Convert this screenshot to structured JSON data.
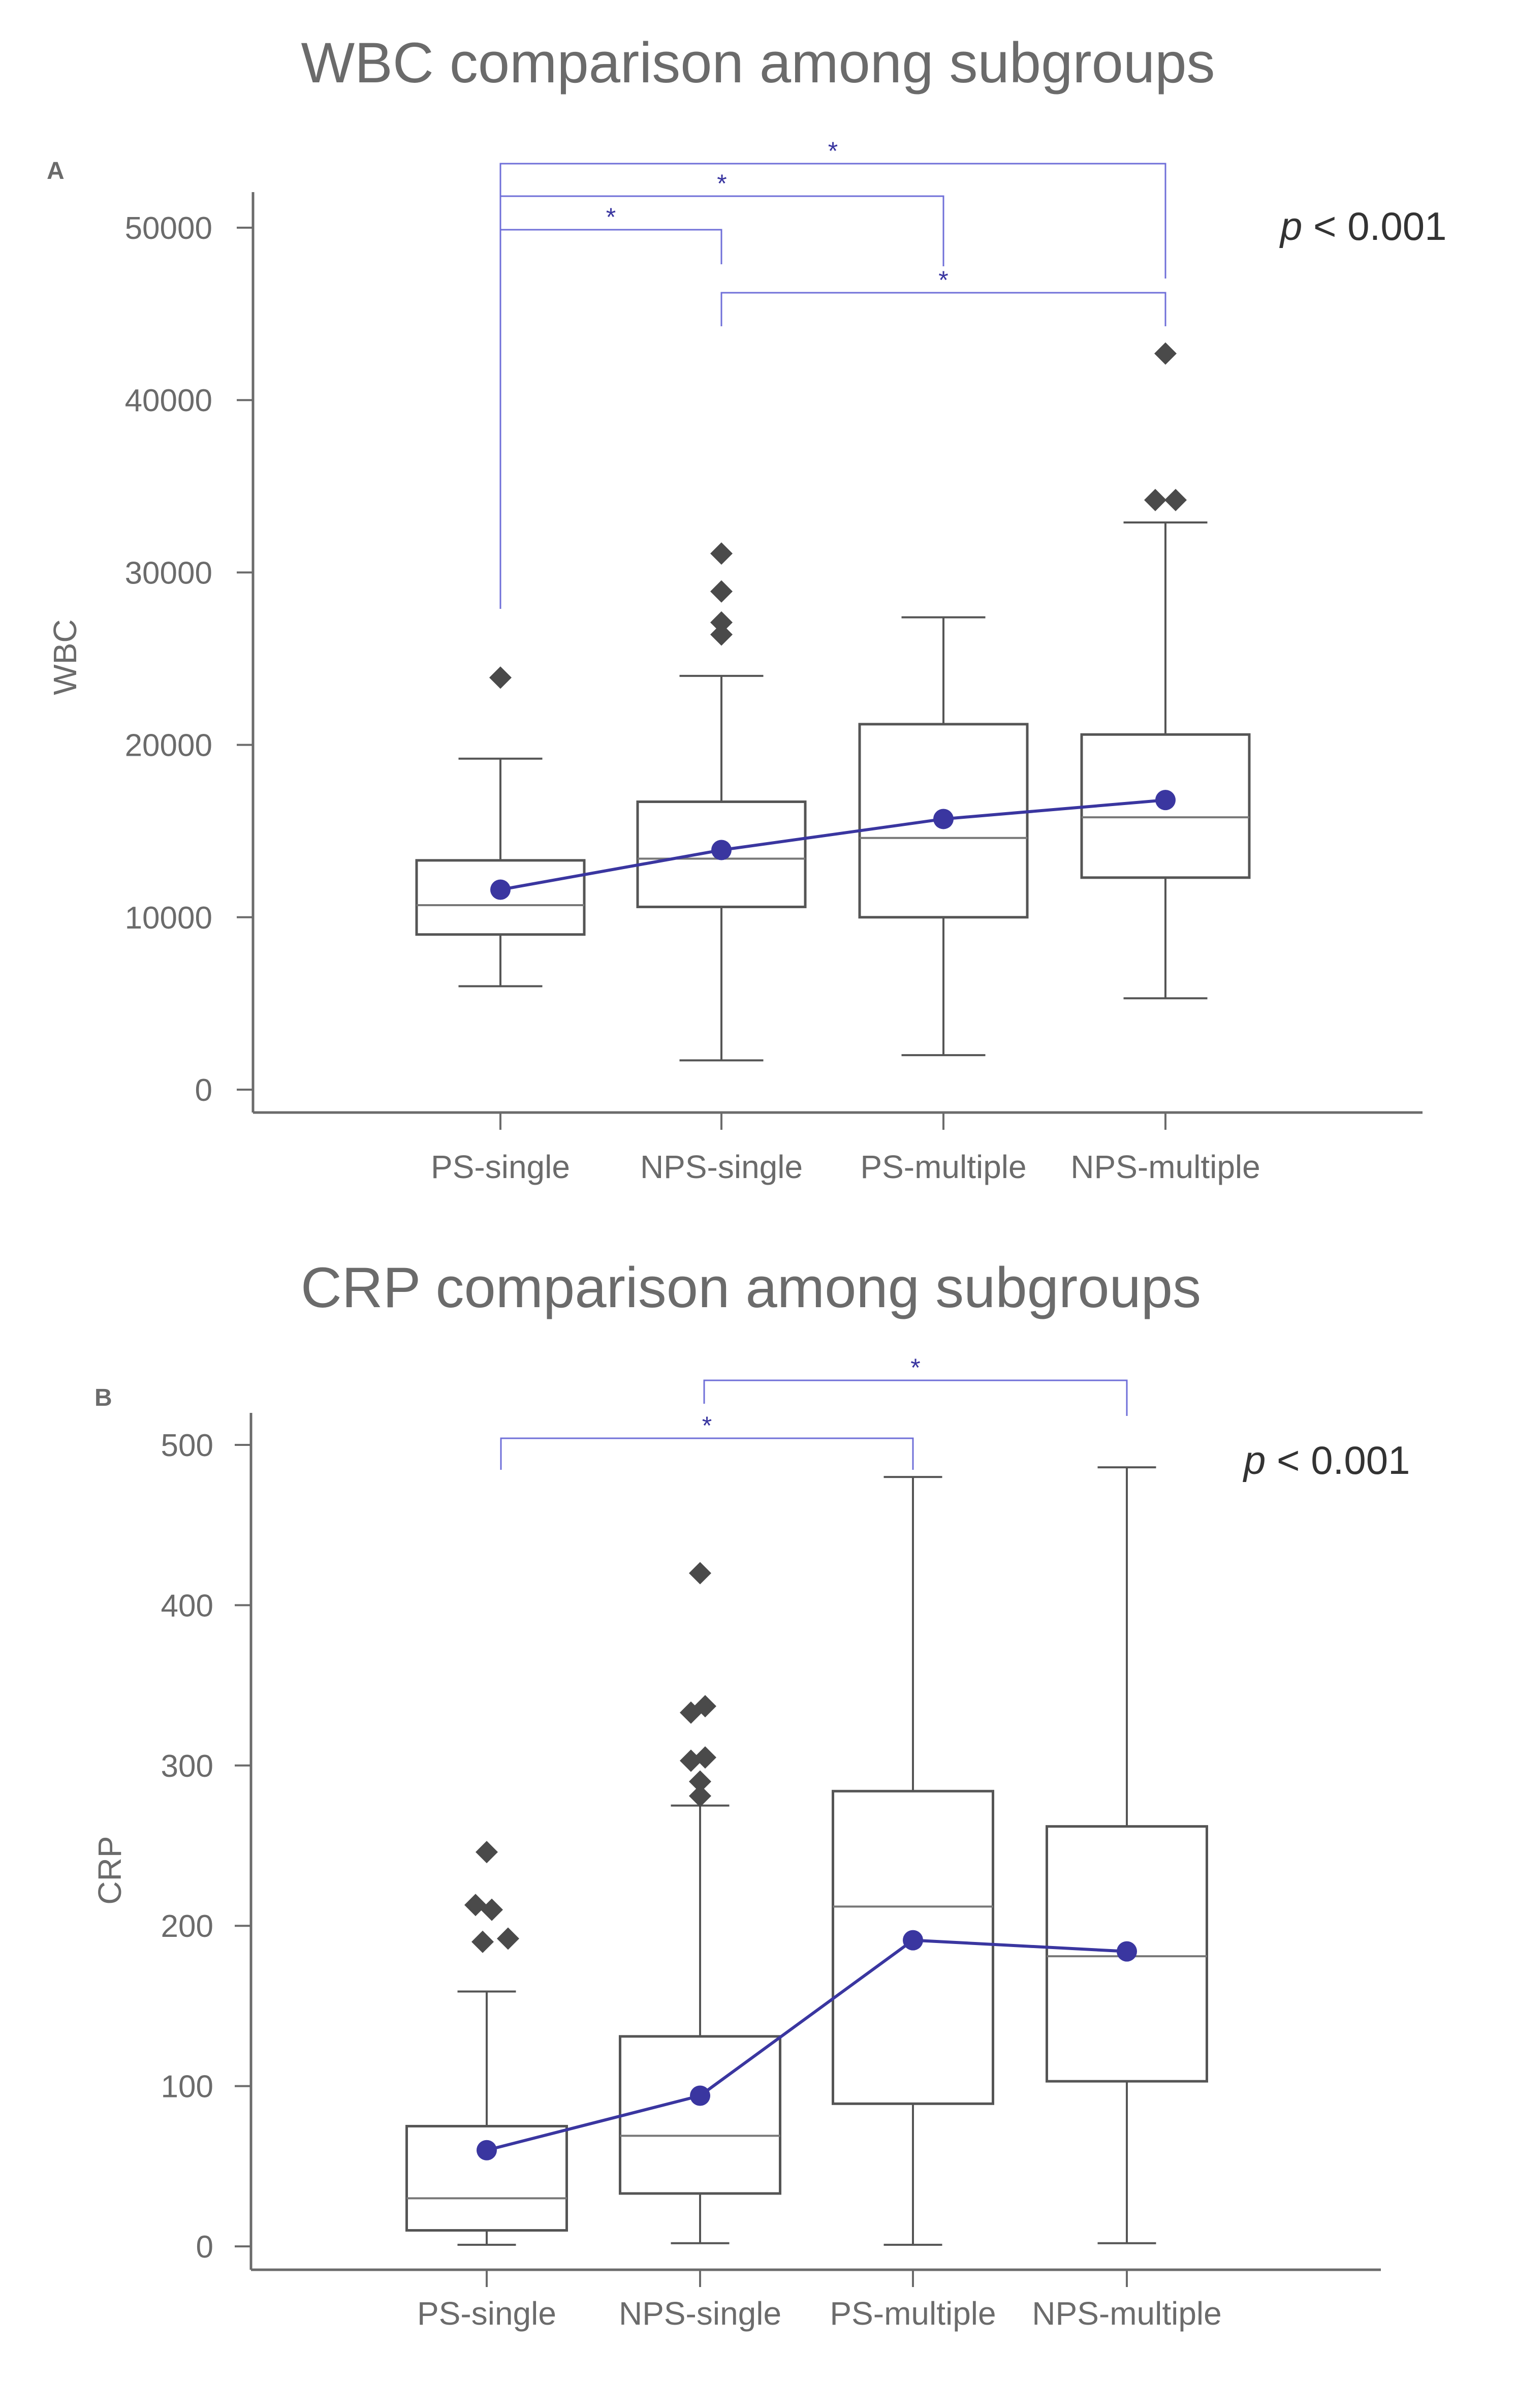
{
  "chart_data": [
    {
      "type": "box",
      "panel_label": "A",
      "title": "WBC comparison among subgroups",
      "ylabel": "WBC",
      "xlabel": "",
      "categories": [
        "PS-single",
        "NPS-single",
        "PS-multiple",
        "NPS-multiple"
      ],
      "ylim": [
        0,
        53000
      ],
      "yticks": [
        0,
        10000,
        20000,
        30000,
        40000,
        50000
      ],
      "ytick_labels": [
        "0",
        "10000",
        "20000",
        "30000",
        "40000",
        "50000"
      ],
      "boxes": [
        {
          "category": "PS-single",
          "whisker_low": 6000,
          "q1": 9000,
          "median": 10700,
          "q3": 13300,
          "whisker_high": 19200,
          "outliers": [
            23900
          ]
        },
        {
          "category": "NPS-single",
          "whisker_low": 1700,
          "q1": 10600,
          "median": 13400,
          "q3": 16700,
          "whisker_high": 24000,
          "outliers": [
            31100,
            28900,
            27100,
            26400
          ]
        },
        {
          "category": "PS-multiple",
          "whisker_low": 2000,
          "q1": 10000,
          "median": 14600,
          "q3": 21200,
          "whisker_high": 27400,
          "outliers": []
        },
        {
          "category": "NPS-multiple",
          "whisker_low": 5300,
          "q1": 12300,
          "median": 15800,
          "q3": 20600,
          "whisker_high": 32900,
          "outliers": [
            42700,
            34200,
            34200
          ]
        }
      ],
      "mean_line": {
        "values": [
          11600,
          13900,
          15700,
          16800
        ],
        "color": "#3a36a0"
      },
      "significance": [
        {
          "from": "PS-single",
          "to": "NPS-multiple",
          "label": "*"
        },
        {
          "from": "PS-single",
          "to": "PS-multiple",
          "label": "*"
        },
        {
          "from": "PS-single",
          "to": "NPS-single",
          "label": "*"
        },
        {
          "from": "NPS-single",
          "to": "NPS-multiple",
          "label": "*"
        }
      ],
      "pvalue": {
        "symbol": "p",
        "text": " < 0.001"
      }
    },
    {
      "type": "box",
      "panel_label": "B",
      "title": "CRP comparison among subgroups",
      "ylabel": "CRP",
      "xlabel": "",
      "categories": [
        "PS-single",
        "NPS-single",
        "PS-multiple",
        "NPS-multiple"
      ],
      "ylim": [
        0,
        520
      ],
      "yticks": [
        0,
        100,
        200,
        300,
        400,
        500
      ],
      "ytick_labels": [
        "0",
        "100",
        "200",
        "300",
        "400",
        "500"
      ],
      "boxes": [
        {
          "category": "PS-single",
          "whisker_low": 1,
          "q1": 10,
          "median": 30,
          "q3": 75,
          "whisker_high": 159,
          "outliers": [
            246,
            213,
            210,
            192,
            190
          ]
        },
        {
          "category": "NPS-single",
          "whisker_low": 2,
          "q1": 33,
          "median": 69,
          "q3": 131,
          "whisker_high": 275,
          "outliers": [
            420,
            337,
            333,
            305,
            303,
            290,
            281
          ]
        },
        {
          "category": "PS-multiple",
          "whisker_low": 1,
          "q1": 89,
          "median": 212,
          "q3": 284,
          "whisker_high": 480,
          "outliers": []
        },
        {
          "category": "NPS-multiple",
          "whisker_low": 2,
          "q1": 103,
          "median": 181,
          "q3": 262,
          "whisker_high": 486,
          "outliers": []
        }
      ],
      "mean_line": {
        "values": [
          60,
          94,
          191,
          184
        ],
        "color": "#3a36a0"
      },
      "significance": [
        {
          "from": "NPS-single",
          "to": "NPS-multiple",
          "label": "*"
        },
        {
          "from": "PS-single",
          "to": "PS-multiple",
          "label": "*"
        }
      ],
      "pvalue": {
        "symbol": "p",
        "text": " < 0.001"
      }
    }
  ]
}
